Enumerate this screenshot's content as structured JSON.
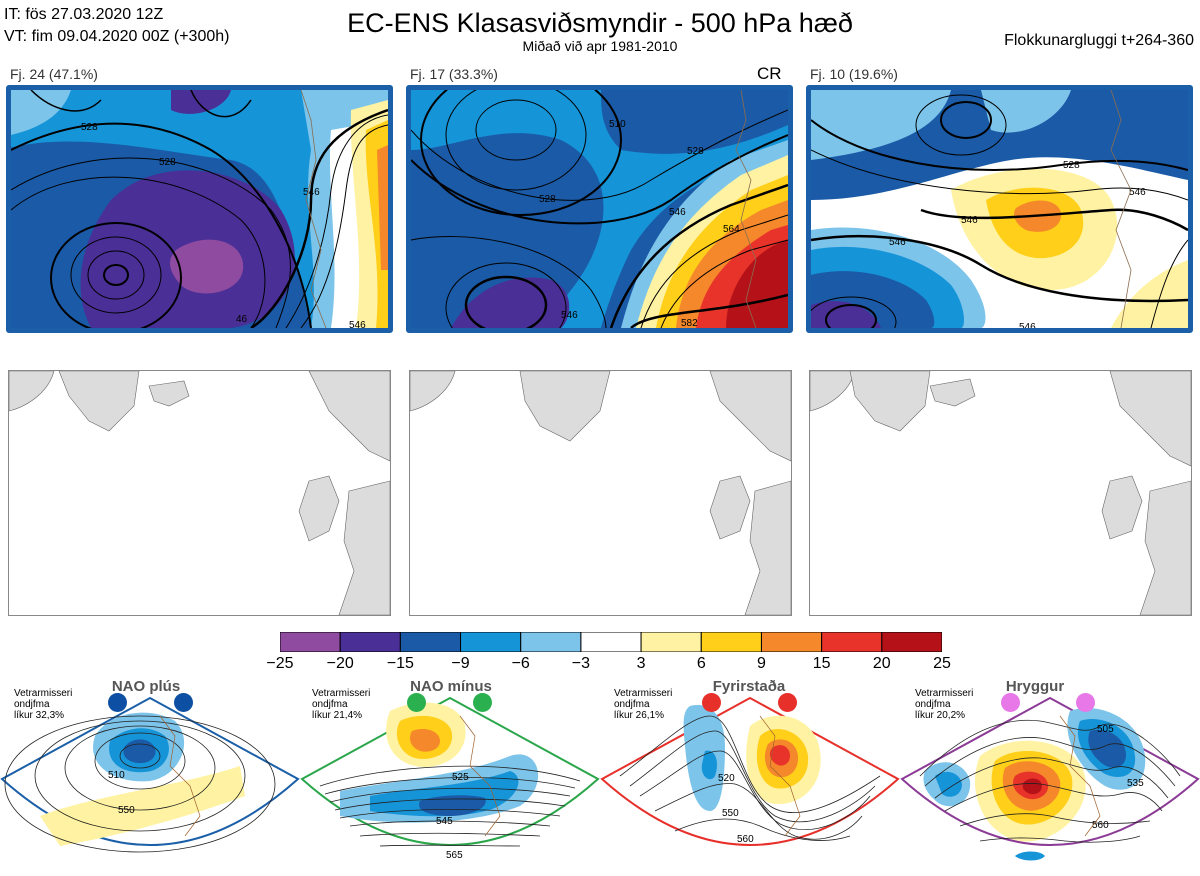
{
  "header": {
    "it_line": "IT: fös 27.03.2020 12Z",
    "vt_line": "VT: fim 09.04.2020 00Z  (+300h)",
    "title": "EC-ENS Klasasviðsmyndir - 500 hPa hæð",
    "subtitle": "Miðað við apr 1981-2010",
    "window": "Flokkunargluggi t+264-360"
  },
  "clusters": [
    {
      "label": "Fj. 24 (47.1%)",
      "tag": "",
      "contours": [
        "528",
        "546",
        "528",
        "46",
        "546"
      ]
    },
    {
      "label": "Fj. 17 (33.3%)",
      "tag": "CR",
      "contours": [
        "510",
        "528",
        "528",
        "546",
        "564",
        "546",
        "582"
      ]
    },
    {
      "label": "Fj. 10 (19.6%)",
      "tag": "",
      "contours": [
        "528",
        "546",
        "546",
        "546",
        "546"
      ]
    }
  ],
  "colorbar": {
    "ticks": [
      "−25",
      "−20",
      "−15",
      "−9",
      "−6",
      "−3",
      "3",
      "6",
      "9",
      "15",
      "20",
      "25"
    ],
    "colors": [
      "#8e4ba0",
      "#4a2f96",
      "#1a5aa6",
      "#1694d8",
      "#7cc4ea",
      "#ffffff",
      "#fff3a3",
      "#ffcf1a",
      "#f5882a",
      "#e8332b",
      "#b41218"
    ]
  },
  "regimes": [
    {
      "title": "NAO plús",
      "note_lines": [
        "Vetrarmisseri",
        "ondjfma",
        "líkur 32,3%"
      ],
      "frame_color": "#1a5fa8",
      "dot_color": "#0d4fa3",
      "contours": [
        "510",
        "550"
      ]
    },
    {
      "title": "NAO mínus",
      "note_lines": [
        "Vetrarmisseri",
        "ondjfma",
        "líkur 21,4%"
      ],
      "frame_color": "#2aa64a",
      "dot_color": "#2bb04f",
      "contours": [
        "525",
        "545",
        "565"
      ]
    },
    {
      "title": "Fyrirstaða",
      "note_lines": [
        "Vetrarmisseri",
        "ondjfma",
        "líkur 26,1%"
      ],
      "frame_color": "#e8302b",
      "dot_color": "#e8302b",
      "contours": [
        "520",
        "550",
        "560"
      ]
    },
    {
      "title": "Hryggur",
      "note_lines": [
        "Vetrarmisseri",
        "ondjfma",
        "líkur 20,2%"
      ],
      "frame_color": "#8b3a96",
      "dot_color": "#e877e8",
      "contours": [
        "505",
        "535",
        "560"
      ]
    }
  ]
}
